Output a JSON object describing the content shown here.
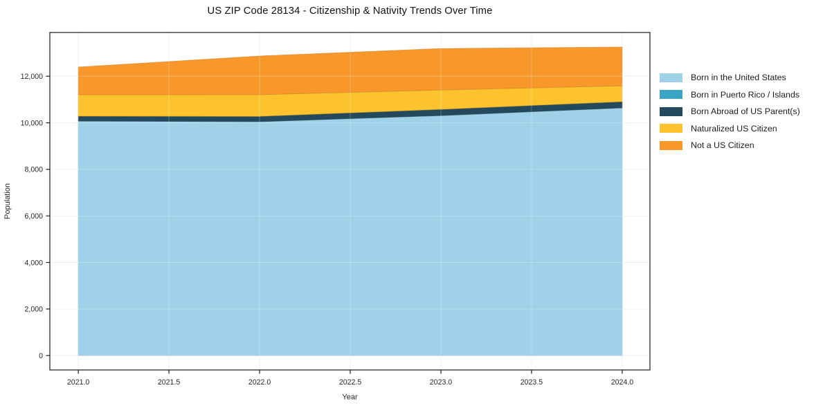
{
  "figure": {
    "title": "US ZIP Code 28134 - Citizenship & Nativity Trends Over Time",
    "xlabel": "Year",
    "ylabel": "Population"
  },
  "chart_data": {
    "type": "area",
    "stacked": true,
    "title": "US ZIP Code 28134 - Citizenship & Nativity Trends Over Time",
    "xlabel": "Year",
    "ylabel": "Population",
    "x": [
      2021,
      2022,
      2023,
      2024
    ],
    "series": [
      {
        "name": "Born in the United States",
        "color": "#9fd2e9",
        "values": [
          10075,
          10050,
          10310,
          10640
        ]
      },
      {
        "name": "Born in Puerto Rico / Islands",
        "color": "#39a5c2",
        "values": [
          0,
          0,
          0,
          0
        ]
      },
      {
        "name": "Born Abroad of US Parent(s)",
        "color": "#25495c",
        "values": [
          210,
          230,
          270,
          270
        ]
      },
      {
        "name": "Naturalized US Citizen",
        "color": "#fdc32f",
        "values": [
          920,
          930,
          830,
          680
        ]
      },
      {
        "name": "Not a US Citizen",
        "color": "#f8982b",
        "values": [
          1190,
          1660,
          1780,
          1665
        ]
      }
    ],
    "x_tick_values": [
      2021.0,
      2021.5,
      2022.0,
      2022.5,
      2023.0,
      2023.5,
      2024.0
    ],
    "x_tick_labels": [
      "2021.0",
      "2021.5",
      "2022.0",
      "2022.5",
      "2023.0",
      "2023.5",
      "2024.0"
    ],
    "y_tick_values": [
      0,
      2000,
      4000,
      6000,
      8000,
      10000,
      12000
    ],
    "y_tick_labels": [
      "0",
      "2,000",
      "4,000",
      "6,000",
      "8,000",
      "10,000",
      "12,000"
    ],
    "xlim": [
      2020.843,
      2024.153
    ],
    "ylim": [
      -620,
      13880
    ],
    "grid": true,
    "legend_position": "center right"
  },
  "legend": {
    "items": [
      {
        "label": "Born in the United States",
        "color": "#9fd2e9"
      },
      {
        "label": "Born in Puerto Rico / Islands",
        "color": "#39a5c2"
      },
      {
        "label": "Born Abroad of US Parent(s)",
        "color": "#25495c"
      },
      {
        "label": "Naturalized US Citizen",
        "color": "#fdc32f"
      },
      {
        "label": "Not a US Citizen",
        "color": "#f8982b"
      }
    ]
  }
}
